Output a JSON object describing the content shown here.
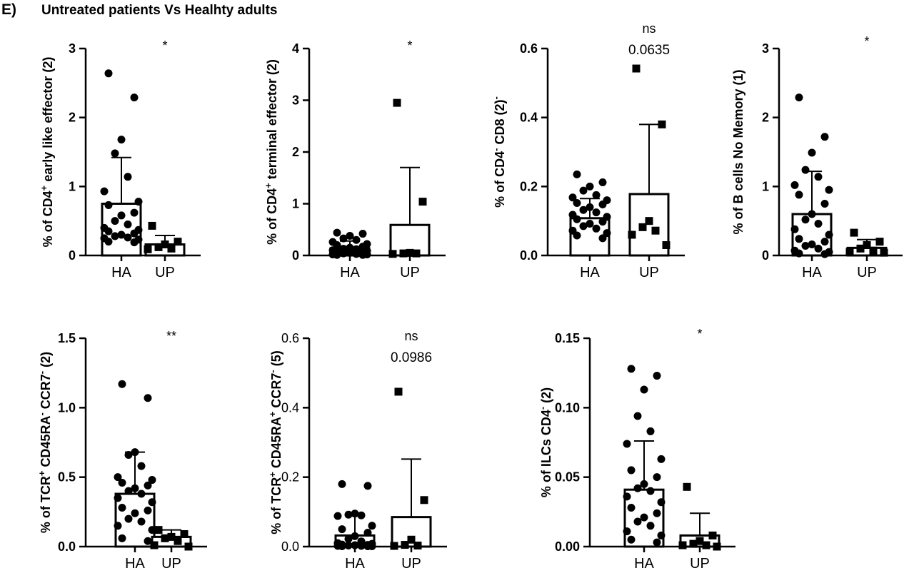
{
  "figure": {
    "panel_label": "E)",
    "title": "Untreated patients Vs Healhty adults"
  },
  "chart_data": [
    {
      "type": "bar",
      "categories": [
        "HA",
        "UP"
      ],
      "ylabel": {
        "pre": "% of CD4",
        "sup": "+",
        "post": " early like effector (2)"
      },
      "ylim": [
        0,
        3
      ],
      "yticks": [
        "0",
        "1",
        "2",
        "3"
      ],
      "bold_ticks": true,
      "bars": [
        0.75,
        0.16
      ],
      "err_upper": [
        1.42,
        0.29
      ],
      "points": [
        [
          2.64,
          2.29,
          1.68,
          1.48,
          1.14,
          0.93,
          0.78,
          0.73,
          0.62,
          0.58,
          0.5,
          0.45,
          0.4,
          0.37,
          0.35,
          0.32,
          0.3,
          0.28,
          0.26,
          0.25,
          0.23,
          0.2,
          0.19
        ],
        [
          0.43,
          0.2,
          0.16,
          0.12,
          0.1,
          0.09
        ]
      ],
      "significance": [
        "*"
      ]
    },
    {
      "type": "bar",
      "categories": [
        "HA",
        "UP"
      ],
      "ylabel": {
        "pre": "% of CD4",
        "sup": "+",
        "post": " terminal effector (2)"
      },
      "ylim": [
        0,
        4
      ],
      "yticks": [
        "0",
        "1",
        "2",
        "3",
        "4"
      ],
      "bold_ticks": true,
      "bars": [
        0.14,
        0.59
      ],
      "err_upper": [
        0.28,
        1.7
      ],
      "points": [
        [
          0.44,
          0.42,
          0.38,
          0.33,
          0.3,
          0.26,
          0.22,
          0.2,
          0.17,
          0.15,
          0.13,
          0.12,
          0.1,
          0.09,
          0.08,
          0.06,
          0.05,
          0.04,
          0.03,
          0.02,
          0.02,
          0.01,
          0.01
        ],
        [
          2.95,
          1.04,
          0.05,
          0.04,
          0.04,
          0.03
        ]
      ],
      "significance": [
        "*"
      ]
    },
    {
      "type": "bar",
      "categories": [
        "HA",
        "UP"
      ],
      "ylabel": {
        "pre": "% of CD4",
        "sup": "-",
        "mid": " CD8",
        "sup2": "-",
        "post": " (2)"
      },
      "ylim": [
        0,
        0.6
      ],
      "yticks": [
        "0.0",
        "0.2",
        "0.4",
        "0.6"
      ],
      "bold_ticks": true,
      "bars": [
        0.108,
        0.178
      ],
      "err_upper": [
        0.165,
        0.38
      ],
      "points": [
        [
          0.235,
          0.212,
          0.2,
          0.188,
          0.175,
          0.168,
          0.16,
          0.152,
          0.148,
          0.14,
          0.132,
          0.125,
          0.118,
          0.112,
          0.105,
          0.098,
          0.092,
          0.085,
          0.078,
          0.072,
          0.065,
          0.058,
          0.05
        ],
        [
          0.542,
          0.38,
          0.1,
          0.082,
          0.072,
          0.06,
          0.03
        ]
      ],
      "significance": [
        "ns",
        "0.0635"
      ]
    },
    {
      "type": "bar",
      "categories": [
        "HA",
        "UP"
      ],
      "ylabel": {
        "pre": "% of B cells No Memory (1)"
      },
      "ylim": [
        0,
        3
      ],
      "yticks": [
        "0",
        "1",
        "2",
        "3"
      ],
      "bold_ticks": true,
      "bars": [
        0.6,
        0.11
      ],
      "err_upper": [
        1.22,
        0.23
      ],
      "points": [
        [
          2.29,
          1.72,
          1.49,
          1.24,
          1.14,
          1.02,
          0.95,
          0.88,
          0.75,
          0.6,
          0.52,
          0.46,
          0.38,
          0.3,
          0.24,
          0.2,
          0.16,
          0.14,
          0.1,
          0.07,
          0.05,
          0.03,
          0.02
        ],
        [
          0.33,
          0.2,
          0.15,
          0.1,
          0.07,
          0.05,
          0.04
        ]
      ],
      "significance": [
        "*"
      ]
    },
    {
      "type": "bar",
      "categories": [
        "HA",
        "UP"
      ],
      "ylabel": {
        "pre": "% of TCR",
        "sup": "+",
        "post": " CD45RA",
        "sup2": "-",
        "post2": " CCR7",
        "sup3": "-",
        "post3": " (2)"
      },
      "ylim": [
        0,
        1.5
      ],
      "yticks": [
        "0.0",
        "0.5",
        "1.0",
        "1.5"
      ],
      "bold_ticks": true,
      "bars": [
        0.38,
        0.07
      ],
      "err_upper": [
        0.68,
        0.12
      ],
      "points": [
        [
          1.17,
          1.07,
          0.68,
          0.66,
          0.58,
          0.5,
          0.48,
          0.46,
          0.44,
          0.42,
          0.4,
          0.38,
          0.35,
          0.32,
          0.28,
          0.26,
          0.24,
          0.2,
          0.18,
          0.15,
          0.12,
          0.06,
          0.04
        ],
        [
          0.12,
          0.09,
          0.07,
          0.06,
          0.04,
          0.01,
          0.0
        ]
      ],
      "significance": [
        "**"
      ]
    },
    {
      "type": "bar",
      "categories": [
        "HA",
        "UP"
      ],
      "ylabel": {
        "pre": "% of TCR",
        "sup": "+",
        "post": " CD45RA",
        "sup2": "+",
        "post2": " CCR7",
        "sup3": "-",
        "post3": " (5)"
      },
      "ylim": [
        0,
        0.6
      ],
      "yticks": [
        "0.0",
        "0.2",
        "0.4",
        "0.6"
      ],
      "bold_ticks": false,
      "bars": [
        0.032,
        0.085
      ],
      "err_upper": [
        0.088,
        0.252
      ],
      "points": [
        [
          0.18,
          0.175,
          0.095,
          0.092,
          0.09,
          0.088,
          0.06,
          0.05,
          0.04,
          0.03,
          0.022,
          0.015,
          0.01,
          0.008,
          0.006,
          0.005,
          0.004,
          0.003,
          0.002,
          0.002,
          0.001,
          0.001,
          0.001
        ],
        [
          0.446,
          0.134,
          0.02,
          0.005,
          0.003,
          0.002
        ]
      ],
      "significance": [
        "ns",
        "0.0986"
      ]
    },
    {
      "type": "bar",
      "categories": [
        "HA",
        "UP"
      ],
      "ylabel": {
        "pre": "% of ILCs CD4",
        "sup": "-",
        "post": " (2)"
      },
      "ylim": [
        0,
        0.15
      ],
      "yticks": [
        "0.00",
        "0.05",
        "0.10",
        "0.15"
      ],
      "bold_ticks": true,
      "bars": [
        0.041,
        0.008
      ],
      "err_upper": [
        0.076,
        0.024
      ],
      "points": [
        [
          0.128,
          0.123,
          0.113,
          0.094,
          0.083,
          0.074,
          0.063,
          0.055,
          0.05,
          0.045,
          0.042,
          0.04,
          0.036,
          0.032,
          0.028,
          0.024,
          0.021,
          0.018,
          0.015,
          0.011,
          0.008,
          0.005,
          0.003
        ],
        [
          0.043,
          0.008,
          0.004,
          0.002,
          0.001,
          0.001,
          0.0
        ]
      ],
      "significance": [
        "*"
      ]
    }
  ]
}
